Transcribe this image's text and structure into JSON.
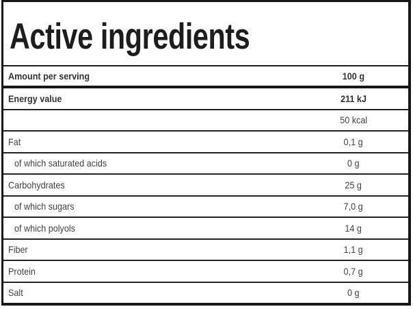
{
  "title": "Active ingredients",
  "table": {
    "header": {
      "label": "Amount per serving",
      "value": "100 g"
    },
    "rows": [
      {
        "label": "Energy value",
        "value": "211 kJ",
        "bold": true,
        "indent": false
      },
      {
        "label": "",
        "value": "50 kcal",
        "bold": false,
        "indent": false
      },
      {
        "label": "Fat",
        "value": "0,1 g",
        "bold": false,
        "indent": false
      },
      {
        "label": "of which saturated acids",
        "value": "0 g",
        "bold": false,
        "indent": true
      },
      {
        "label": "Carbohydrates",
        "value": "25 g",
        "bold": false,
        "indent": false
      },
      {
        "label": "of which sugars",
        "value": "7,0 g",
        "bold": false,
        "indent": true
      },
      {
        "label": "of which polyols",
        "value": "14 g",
        "bold": false,
        "indent": true
      },
      {
        "label": "Fiber",
        "value": "1,1 g",
        "bold": false,
        "indent": false
      },
      {
        "label": "Protein",
        "value": "0,7 g",
        "bold": false,
        "indent": false
      },
      {
        "label": "Salt",
        "value": "0 g",
        "bold": false,
        "indent": false
      }
    ]
  },
  "colors": {
    "border": "#161616",
    "row_line": "#242424",
    "title_text": "#1d1d1d",
    "bold_text": "#323234",
    "body_text": "#424242",
    "background": "#ffffff"
  }
}
